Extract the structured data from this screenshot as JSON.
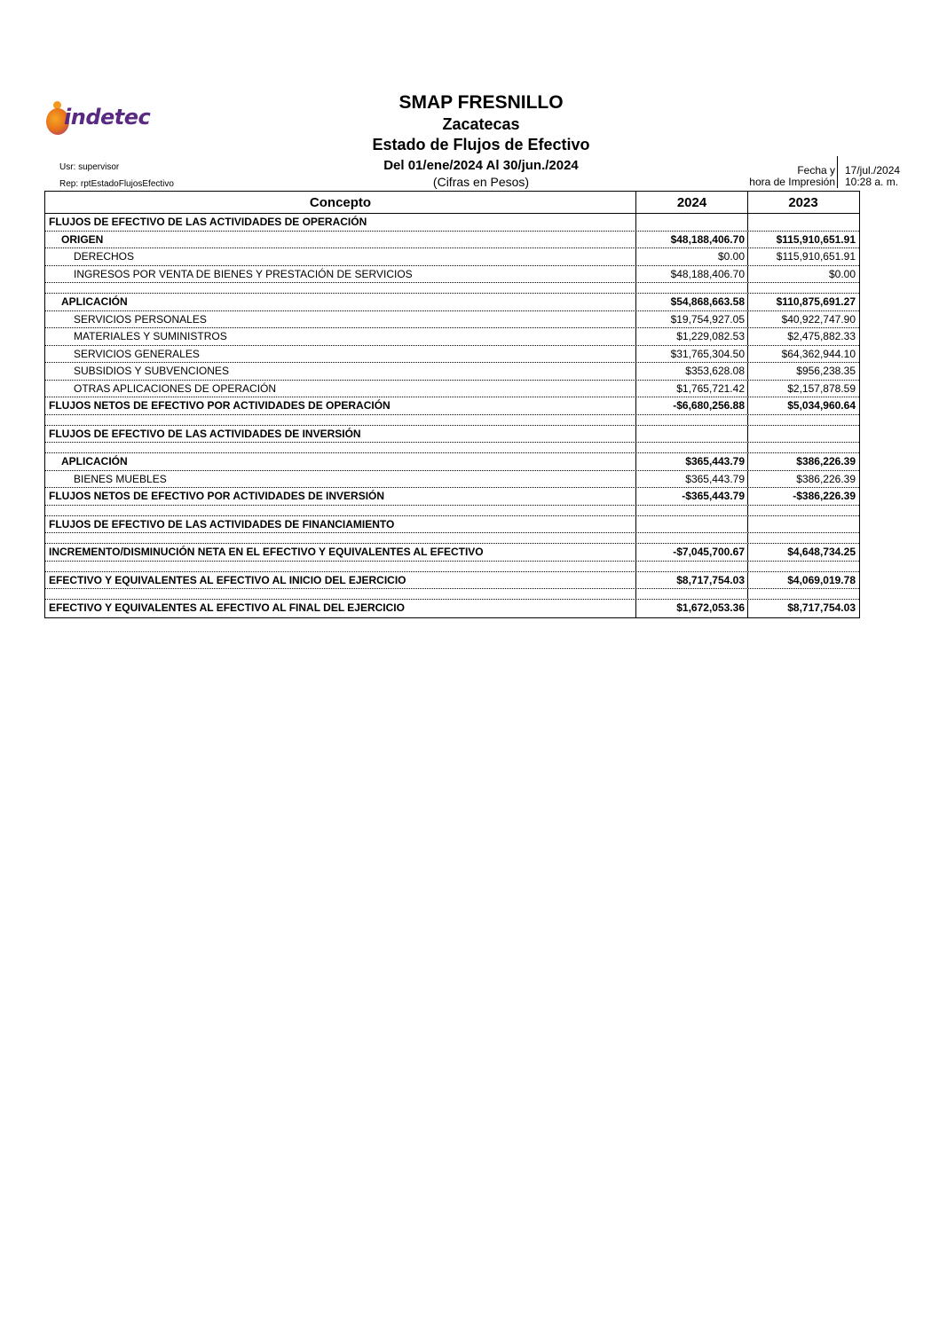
{
  "logo": {
    "text": "indetec"
  },
  "header": {
    "entity": "SMAP FRESNILLO",
    "state": "Zacatecas",
    "report_title": "Estado de Flujos de Efectivo",
    "period": "Del 01/ene/2024 Al 30/jun./2024",
    "units": "(Cifras en Pesos)",
    "user": "Usr: supervisor",
    "report_id": "Rep: rptEstadoFlujosEfectivo",
    "print_label_1": "Fecha y",
    "print_label_2": "hora de Impresión",
    "print_date": "17/jul./2024",
    "print_time": "10:28 a. m."
  },
  "table": {
    "columns": [
      "Concepto",
      "2024",
      "2023"
    ],
    "rows": [
      {
        "type": "row",
        "style": "bold",
        "indent": 0,
        "label": "FLUJOS DE EFECTIVO DE LAS ACTIVIDADES DE OPERACIÓN",
        "v2024": "",
        "v2023": ""
      },
      {
        "type": "row",
        "style": "bold",
        "indent": 1,
        "label": "ORIGEN",
        "v2024": "$48,188,406.70",
        "v2023": "$115,910,651.91"
      },
      {
        "type": "row",
        "style": "normal",
        "indent": 2,
        "label": "DERECHOS",
        "v2024": "$0.00",
        "v2023": "$115,910,651.91"
      },
      {
        "type": "row",
        "style": "normal",
        "indent": 2,
        "label": "INGRESOS POR VENTA DE BIENES Y PRESTACIÓN DE SERVICIOS",
        "v2024": "$48,188,406.70",
        "v2023": "$0.00"
      },
      {
        "type": "spacer"
      },
      {
        "type": "row",
        "style": "bold",
        "indent": 1,
        "label": "APLICACIÓN",
        "v2024": "$54,868,663.58",
        "v2023": "$110,875,691.27"
      },
      {
        "type": "row",
        "style": "normal",
        "indent": 2,
        "label": "SERVICIOS PERSONALES",
        "v2024": "$19,754,927.05",
        "v2023": "$40,922,747.90"
      },
      {
        "type": "row",
        "style": "normal",
        "indent": 2,
        "label": "MATERIALES Y SUMINISTROS",
        "v2024": "$1,229,082.53",
        "v2023": "$2,475,882.33"
      },
      {
        "type": "row",
        "style": "normal",
        "indent": 2,
        "label": "SERVICIOS GENERALES",
        "v2024": "$31,765,304.50",
        "v2023": "$64,362,944.10"
      },
      {
        "type": "row",
        "style": "normal",
        "indent": 2,
        "label": "SUBSIDIOS Y SUBVENCIONES",
        "v2024": "$353,628.08",
        "v2023": "$956,238.35"
      },
      {
        "type": "row",
        "style": "normal",
        "indent": 2,
        "label": "OTRAS APLICACIONES DE OPERACIÓN",
        "v2024": "$1,765,721.42",
        "v2023": "$2,157,878.59"
      },
      {
        "type": "row",
        "style": "bold",
        "indent": 0,
        "label": "FLUJOS NETOS DE EFECTIVO POR ACTIVIDADES DE OPERACIÓN",
        "v2024": "-$6,680,256.88",
        "v2023": "$5,034,960.64"
      },
      {
        "type": "spacer"
      },
      {
        "type": "row",
        "style": "bold",
        "indent": 0,
        "label": "FLUJOS DE EFECTIVO DE LAS ACTIVIDADES DE INVERSIÓN",
        "v2024": "",
        "v2023": ""
      },
      {
        "type": "spacer"
      },
      {
        "type": "row",
        "style": "bold",
        "indent": 1,
        "label": "APLICACIÓN",
        "v2024": "$365,443.79",
        "v2023": "$386,226.39"
      },
      {
        "type": "row",
        "style": "normal",
        "indent": 2,
        "label": "BIENES MUEBLES",
        "v2024": "$365,443.79",
        "v2023": "$386,226.39"
      },
      {
        "type": "row",
        "style": "bold",
        "indent": 0,
        "label": "FLUJOS NETOS DE EFECTIVO POR ACTIVIDADES DE INVERSIÓN",
        "v2024": "-$365,443.79",
        "v2023": "-$386,226.39"
      },
      {
        "type": "spacer"
      },
      {
        "type": "row",
        "style": "bold",
        "indent": 0,
        "label": "FLUJOS DE EFECTIVO DE LAS ACTIVIDADES DE FINANCIAMIENTO",
        "v2024": "",
        "v2023": ""
      },
      {
        "type": "spacer"
      },
      {
        "type": "row",
        "style": "bold",
        "indent": 0,
        "label": "INCREMENTO/DISMINUCIÓN NETA EN EL EFECTIVO Y EQUIVALENTES AL EFECTIVO",
        "v2024": "-$7,045,700.67",
        "v2023": "$4,648,734.25"
      },
      {
        "type": "spacer"
      },
      {
        "type": "row",
        "style": "bold",
        "indent": 0,
        "label": "EFECTIVO Y EQUIVALENTES AL EFECTIVO AL INICIO DEL EJERCICIO",
        "v2024": "$8,717,754.03",
        "v2023": "$4,069,019.78"
      },
      {
        "type": "spacer"
      },
      {
        "type": "row",
        "style": "bold",
        "indent": 0,
        "label": "EFECTIVO Y EQUIVALENTES AL EFECTIVO AL FINAL DEL EJERCICIO",
        "v2024": "$1,672,053.36",
        "v2023": "$8,717,754.03"
      }
    ]
  }
}
